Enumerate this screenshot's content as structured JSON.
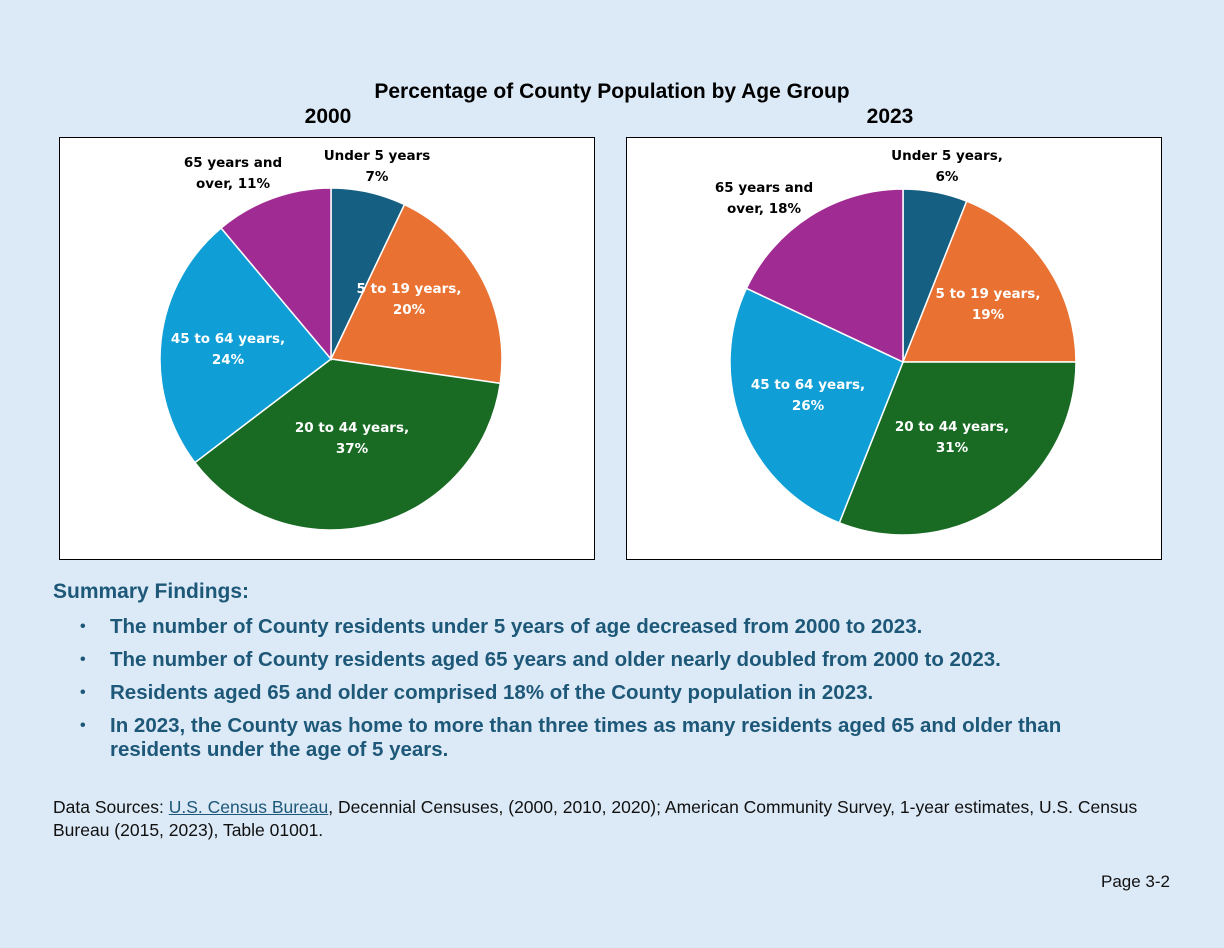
{
  "title": "Percentage of County Population by Age Group",
  "chart_data": [
    {
      "type": "pie",
      "title": "2000",
      "categories": [
        "Under 5 years",
        "5 to 19 years",
        "20 to 44 years",
        "45 to 64 years",
        "65 years and over"
      ],
      "values": [
        7,
        20,
        37,
        24,
        11
      ],
      "colors": [
        "#145f82",
        "#e97132",
        "#196b24",
        "#0f9ed5",
        "#a02b93"
      ],
      "labels": [
        [
          "Under 5 years",
          "7%"
        ],
        [
          "5 to 19 years,",
          "20%"
        ],
        [
          "20 to 44 years,",
          "37%"
        ],
        [
          "45 to 64 years,",
          "24%"
        ],
        [
          "65 years and",
          "over, 11%"
        ]
      ],
      "label_colors": [
        "#000000",
        "#ffffff",
        "#ffffff",
        "#ffffff",
        "#000000"
      ]
    },
    {
      "type": "pie",
      "title": "2023",
      "categories": [
        "Under 5 years",
        "5 to 19 years",
        "20 to 44 years",
        "45 to 64 years",
        "65 years and over"
      ],
      "values": [
        6,
        19,
        31,
        26,
        18
      ],
      "colors": [
        "#145f82",
        "#e97132",
        "#196b24",
        "#0f9ed5",
        "#a02b93"
      ],
      "labels": [
        [
          "Under 5 years,",
          "6%"
        ],
        [
          "5 to 19 years,",
          "19%"
        ],
        [
          "20 to 44 years,",
          "31%"
        ],
        [
          "45 to 64 years,",
          "26%"
        ],
        [
          "65 years and",
          "over, 18%"
        ]
      ],
      "label_colors": [
        "#000000",
        "#ffffff",
        "#ffffff",
        "#ffffff",
        "#000000"
      ]
    }
  ],
  "summary": {
    "title": "Summary Findings:",
    "bullet": "•",
    "items": [
      "The number of County residents under 5 years of age decreased from 2000 to 2023.",
      "The number of County residents aged 65 years and older nearly doubled from 2000 to 2023.",
      "Residents aged 65 and older comprised 18% of the County population in 2023.",
      "In 2023, the County was home to more than three times as many residents aged 65 and older than residents under the age of 5 years."
    ]
  },
  "sources": {
    "prefix": "Data Sources: ",
    "link_text": "U.S. Census Bureau",
    "suffix": ", Decennial Censuses, (2000, 2010, 2020); American Community Survey, 1-year estimates, U.S. Census Bureau (2015, 2023), Table 01001."
  },
  "page_number": "Page 3-2"
}
